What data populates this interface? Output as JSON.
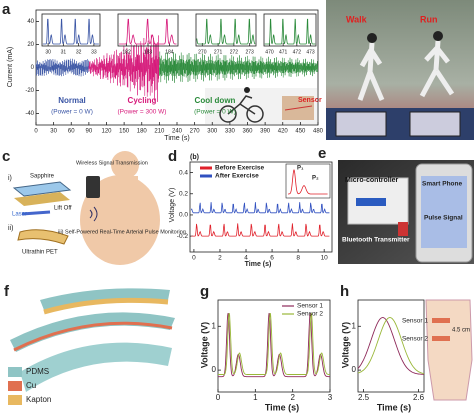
{
  "a": {
    "label": "a",
    "y_label": "Current (mA)",
    "x_label": "Time (s)",
    "xlim": [
      0,
      480
    ],
    "xticks": [
      0,
      30,
      60,
      90,
      120,
      150,
      180,
      210,
      240,
      270,
      300,
      330,
      360,
      390,
      420,
      450,
      480
    ],
    "ylim": [
      -50,
      50
    ],
    "yticks": [
      40,
      20,
      0,
      -20,
      -40
    ],
    "insets": [
      {
        "xlim": [
          29.6,
          33.4
        ],
        "xticks": [
          30,
          31,
          32,
          33
        ],
        "color": "#3a55a5"
      },
      {
        "xlim": [
          181.6,
          184.4
        ],
        "xticks": [
          182,
          183,
          184
        ],
        "color": "#d6197a"
      },
      {
        "xlim": [
          269.6,
          273.4
        ],
        "xticks": [
          270,
          271,
          272,
          273
        ],
        "color": "#2a8a3a"
      },
      {
        "xlim": [
          469.6,
          473.4
        ],
        "xticks": [
          470,
          471,
          472,
          473
        ],
        "color": "#2a8a3a"
      }
    ],
    "phases": [
      {
        "name": "Normal",
        "power": "(Power = 0 W)",
        "color": "#3a55a5"
      },
      {
        "name": "Cycling",
        "power": "(Power = 300 W)",
        "color": "#d6197a"
      },
      {
        "name": "Cool down",
        "power": "(Power = 0 W)",
        "color": "#2a8a3a"
      }
    ],
    "sensor": "Sensor"
  },
  "b": {
    "label": "b",
    "walk": "Walk",
    "run": "Run"
  },
  "c": {
    "label": "c",
    "step1": "i)",
    "sapphire": "Sapphire",
    "laser": "Laser",
    "lift_off": "Lift Off",
    "step2": "ii)",
    "pet": "Ultrathin PET",
    "wireless": "Wireless Signal Transmission",
    "step3": "iii) Self-Powered Real-Time Arterial Pulse Monitoring"
  },
  "d": {
    "label": "d",
    "sub_label": "(b)",
    "y_label": "Voltage (V)",
    "x_label": "Time (s)",
    "xlim": [
      -0.3,
      10.6
    ],
    "xticks": [
      0,
      2,
      4,
      6,
      8,
      10
    ],
    "ylim": [
      -0.35,
      0.5
    ],
    "yticks": [
      0.4,
      0.2,
      {
        "value": 0,
        "label": "0.0"
      },
      -0.2
    ],
    "series": [
      {
        "name": "Before Exercise",
        "color": "#e0202a"
      },
      {
        "name": "After Exercise",
        "color": "#3050c0"
      }
    ],
    "peaks": [
      "P₁",
      "P₂"
    ]
  },
  "e": {
    "label": "e",
    "microcontroller": "Micro-controller",
    "phone": "Smart Phone",
    "pulse": "Pulse Signal",
    "bluetooth": "Bluetooth Transmitter"
  },
  "f": {
    "label": "f",
    "legend": [
      {
        "name": "PDMS",
        "color": "#8fc4c4"
      },
      {
        "name": "Cu",
        "color": "#e07050"
      },
      {
        "name": "Kapton",
        "color": "#e8b860"
      }
    ]
  },
  "g": {
    "label": "g",
    "y_label": "Voltage (V)",
    "x_label": "Time (s)",
    "xlim": [
      0,
      3
    ],
    "xticks": [
      0,
      1,
      2,
      3
    ],
    "ylim": [
      -0.5,
      1.6
    ],
    "yticks": [
      1,
      0
    ],
    "series": [
      {
        "name": "Sensor 1",
        "color": "#8e2a5a"
      },
      {
        "name": "Sensor 2",
        "color": "#9ab83a"
      }
    ]
  },
  "h": {
    "label": "h",
    "y_label": "Voltage (V)",
    "x_label": "Time (s)",
    "xlim": [
      2.49,
      2.61
    ],
    "xticks": [
      2.5,
      2.6
    ],
    "ylim": [
      -0.5,
      1.6
    ],
    "yticks": [
      1,
      0
    ],
    "series": [
      {
        "name": "Sensor 1",
        "color": "#8e2a5a"
      },
      {
        "name": "Sensor 2",
        "color": "#9ab83a"
      }
    ],
    "distance": "4.5 cm"
  }
}
